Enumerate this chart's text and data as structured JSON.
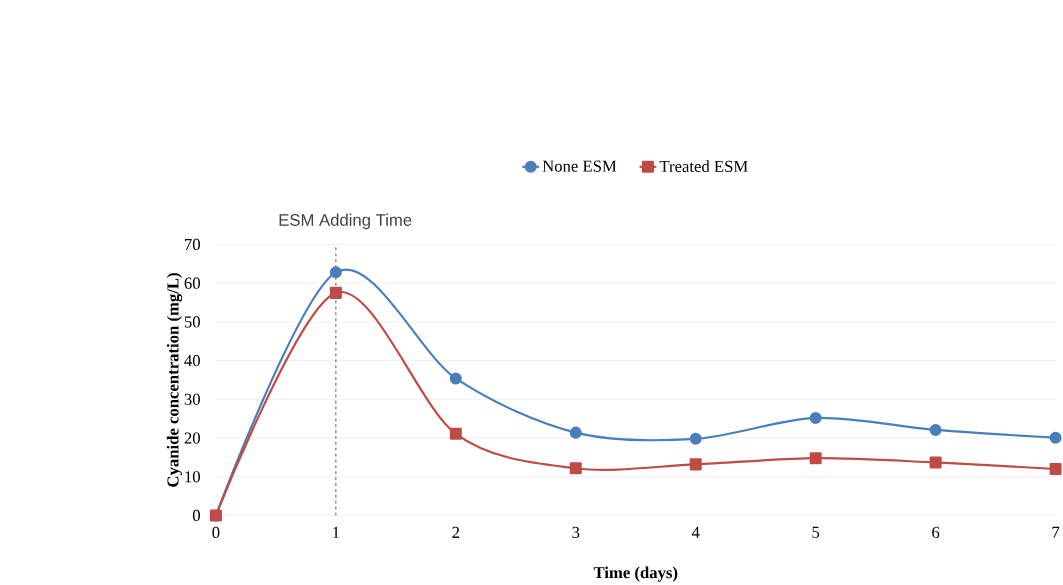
{
  "chart_data": {
    "type": "line",
    "xlabel": "Time (days)",
    "ylabel": "Cyanide concentration (mg/L)",
    "x": [
      0,
      1,
      2,
      3,
      4,
      5,
      6,
      7
    ],
    "series": [
      {
        "name": "None ESM",
        "color": "#4a7ebb",
        "marker": "circle",
        "values": [
          0,
          62.8,
          35.4,
          21.4,
          19.8,
          25.2,
          22.1,
          20.1
        ]
      },
      {
        "name": "Treated ESM",
        "color": "#be4b48",
        "marker": "square",
        "values": [
          0,
          57.5,
          21.1,
          12.2,
          13.2,
          14.8,
          13.7,
          12.0
        ]
      }
    ],
    "xlim": [
      0,
      7
    ],
    "xticks": [
      0,
      1,
      2,
      3,
      4,
      5,
      6,
      7
    ],
    "ylim": [
      0,
      70
    ],
    "yticks": [
      0,
      10,
      20,
      30,
      40,
      50,
      60,
      70
    ],
    "grid": "y",
    "legend": "top",
    "ref_lines": [
      {
        "axis": "x",
        "value": 1,
        "label": "ESM Adding Time",
        "color": "#595959",
        "line_style": "dashed"
      }
    ]
  }
}
